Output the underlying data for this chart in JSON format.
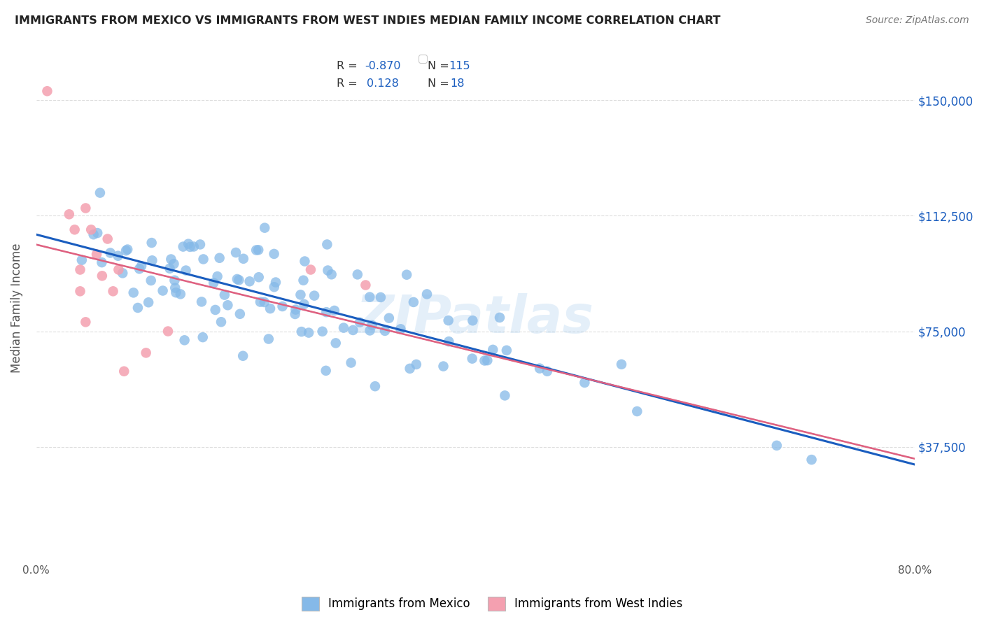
{
  "title": "IMMIGRANTS FROM MEXICO VS IMMIGRANTS FROM WEST INDIES MEDIAN FAMILY INCOME CORRELATION CHART",
  "source": "Source: ZipAtlas.com",
  "ylabel": "Median Family Income",
  "yticks": [
    0,
    37500,
    75000,
    112500,
    150000
  ],
  "ytick_labels": [
    "",
    "$37,500",
    "$75,000",
    "$112,500",
    "$150,000"
  ],
  "xlim": [
    0.0,
    0.8
  ],
  "ylim": [
    15000,
    165000
  ],
  "blue_R": -0.87,
  "blue_N": 115,
  "pink_R": 0.128,
  "pink_N": 18,
  "blue_color": "#85B9E8",
  "pink_color": "#F4A0B0",
  "blue_line_color": "#1A5DBF",
  "pink_line_color": "#E06080",
  "gray_dash_color": "#BBBBBB",
  "legend_label_blue": "Immigrants from Mexico",
  "legend_label_pink": "Immigrants from West Indies",
  "watermark": "ZIPatlas",
  "watermark_color": "#85B9E8",
  "background_color": "#FFFFFF",
  "grid_color": "#DDDDDD",
  "title_color": "#222222",
  "axis_label_color": "#555555",
  "right_axis_label_color": "#1A5DBF"
}
